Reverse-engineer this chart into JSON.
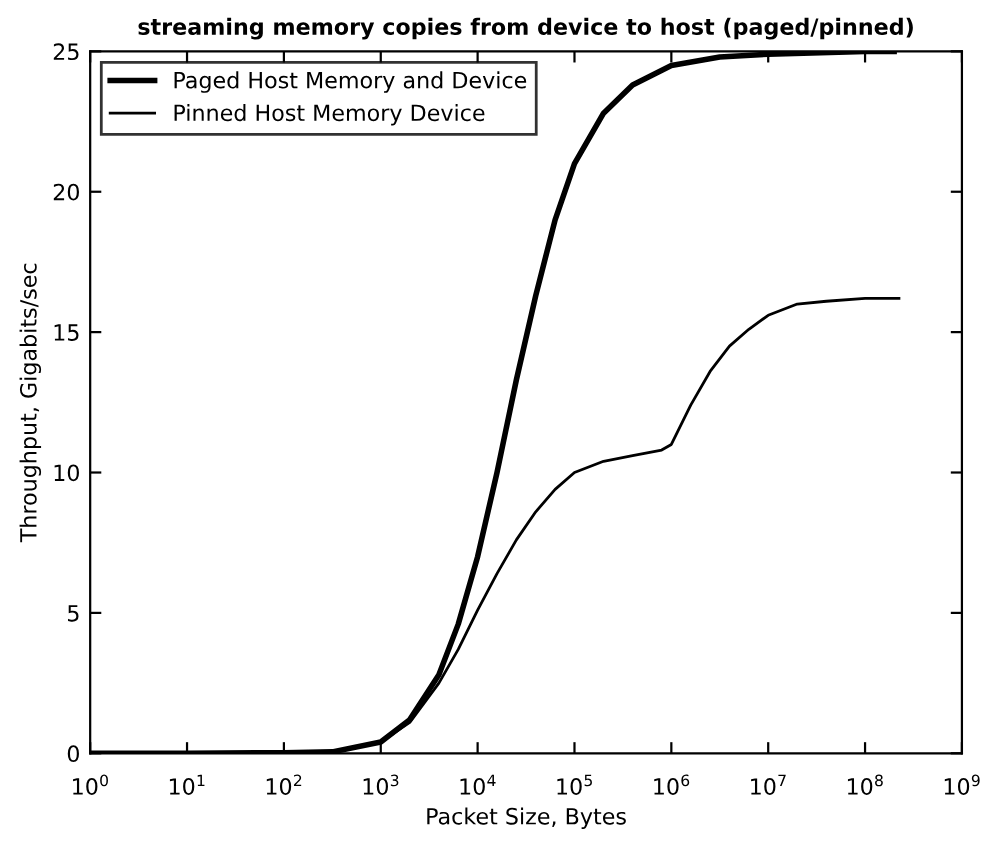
{
  "chart_data": {
    "type": "line",
    "title": "streaming memory copies from device to host (paged/pinned)",
    "xlabel": "Packet Size, Bytes",
    "ylabel": "Throughput, Gigabits/sec",
    "log": "x",
    "xlim": [
      1,
      1000000000
    ],
    "xticks": [
      {
        "value": 1,
        "label": "10$^{0}$"
      },
      {
        "value": 10,
        "label": "10$^{1}$"
      },
      {
        "value": 100,
        "label": "10$^{2}$"
      },
      {
        "value": 1000,
        "label": "10$^{3}$"
      },
      {
        "value": 10000,
        "label": "10$^{4}$"
      },
      {
        "value": 100000,
        "label": "10$^{5}$"
      },
      {
        "value": 1000000,
        "label": "10$^{6}$"
      },
      {
        "value": 10000000,
        "label": "10$^{7}$"
      },
      {
        "value": 100000000,
        "label": "10$^{8}$"
      },
      {
        "value": 1000000000,
        "label": "10$^{9}$"
      }
    ],
    "ylim": [
      0,
      25
    ],
    "yticks": [
      0,
      5,
      10,
      15,
      20,
      25
    ],
    "grid": false,
    "legend": "top left",
    "series": [
      {
        "name": "Paged Host Memory and Device",
        "color": "#000000",
        "x": [
          1,
          10,
          100,
          316,
          1000,
          1995,
          3981,
          6310,
          10000,
          15849,
          25119,
          39811,
          63096,
          100000,
          199526,
          398107,
          1000000,
          3162278,
          10000000,
          100000000,
          199526231
        ],
        "values": [
          0,
          0,
          0.02,
          0.05,
          0.4,
          1.2,
          2.8,
          4.6,
          7.0,
          10.0,
          13.3,
          16.3,
          19.0,
          21.0,
          22.8,
          23.8,
          24.5,
          24.8,
          24.9,
          25.0,
          25.0
        ]
      },
      {
        "name": "Pinned Host Memory Device",
        "color": "#000000",
        "x": [
          1,
          10,
          100,
          316,
          1000,
          1995,
          3981,
          6310,
          10000,
          15849,
          25119,
          39811,
          63096,
          100000,
          199526,
          398107,
          794328,
          1000000,
          1584893,
          2511886,
          3981072,
          6309573,
          10000000,
          19952623,
          39810717,
          100000000,
          223872114
        ],
        "values": [
          0,
          0,
          0.02,
          0.05,
          0.4,
          1.1,
          2.5,
          3.7,
          5.1,
          6.4,
          7.6,
          8.6,
          9.4,
          10.0,
          10.4,
          10.6,
          10.8,
          11.0,
          12.4,
          13.6,
          14.5,
          15.1,
          15.6,
          16.0,
          16.1,
          16.2,
          16.2
        ]
      }
    ]
  }
}
